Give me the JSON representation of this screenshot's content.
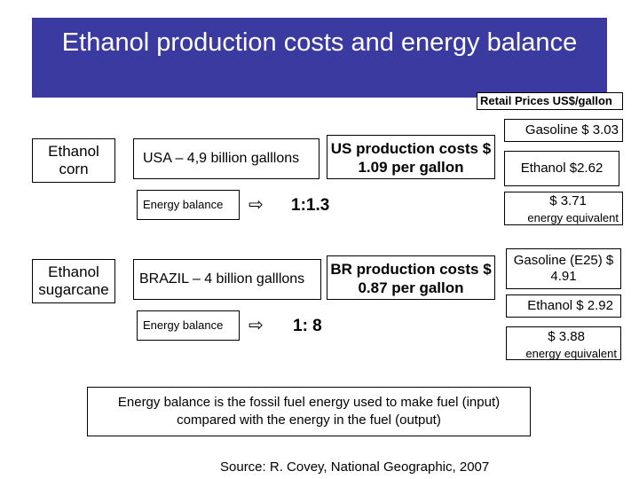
{
  "slide": {
    "title": "Ethanol production costs and energy balance",
    "retail_label": "Retail Prices US$/gallon"
  },
  "corn": {
    "label": "Ethanol corn",
    "production": "USA – 4,9 billion galllons",
    "energy_label": "Energy balance",
    "ratio": "1:1.3",
    "cost": "US production costs $ 1.09 per gallon",
    "gasoline": "Gasoline $ 3.03",
    "ethanol": "Ethanol $2.62",
    "equiv_price": "$ 3.71",
    "equiv_label": "energy equivalent"
  },
  "sugarcane": {
    "label": "Ethanol sugarcane",
    "production": "BRAZIL – 4 billion galllons",
    "energy_label": "Energy balance",
    "ratio": "1: 8",
    "cost": "BR production costs $ 0.87 per gallon",
    "gasoline": "Gasoline (E25) $ 4.91",
    "ethanol": "Ethanol $ 2.92",
    "equiv_price": "$ 3.88",
    "equiv_label": "energy equivalent"
  },
  "definition": "Energy balance is the fossil fuel energy used to make fuel (input) compared with the energy in the fuel (output)",
  "source": "Source: R. Covey, National Geographic, 2007",
  "colors": {
    "title_bg": "#3a3aa0",
    "title_fg": "#ffffff"
  },
  "icons": {
    "arrow": "⇨"
  }
}
